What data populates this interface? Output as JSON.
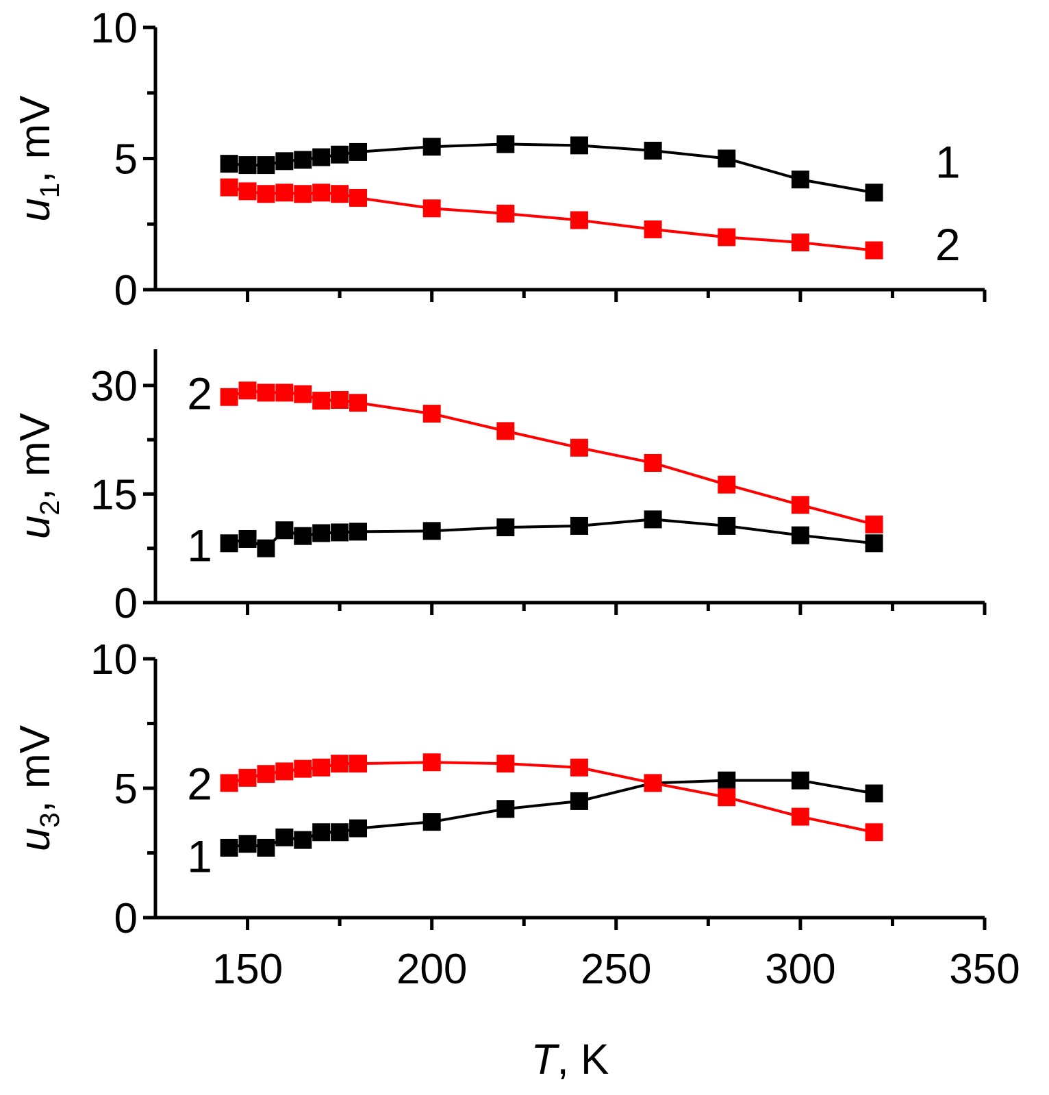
{
  "chart_data": [
    {
      "type": "line",
      "ylabel": {
        "var": "u",
        "sub": "1",
        "rest": ", mV"
      },
      "ylim": [
        0,
        10
      ],
      "yticks": [
        0,
        5,
        10
      ],
      "yminor": [
        2.5,
        7.5
      ],
      "xlim": [
        125,
        350
      ],
      "series": [
        {
          "name": "1",
          "color": "#000000",
          "label_x": 340,
          "label_y": 4.9,
          "x": [
            145,
            150,
            155,
            160,
            165,
            170,
            175,
            180,
            200,
            220,
            240,
            260,
            280,
            300,
            320
          ],
          "values": [
            4.8,
            4.75,
            4.75,
            4.9,
            4.95,
            5.05,
            5.15,
            5.25,
            5.45,
            5.55,
            5.5,
            5.3,
            5.0,
            4.2,
            3.7
          ]
        },
        {
          "name": "2",
          "color": "#ff0000",
          "label_x": 340,
          "label_y": 1.75,
          "x": [
            145,
            150,
            155,
            160,
            165,
            170,
            175,
            180,
            200,
            220,
            240,
            260,
            280,
            300,
            320
          ],
          "values": [
            3.9,
            3.75,
            3.65,
            3.7,
            3.65,
            3.7,
            3.65,
            3.5,
            3.1,
            2.9,
            2.65,
            2.3,
            2.0,
            1.8,
            1.5
          ]
        }
      ]
    },
    {
      "type": "line",
      "ylabel": {
        "var": "u",
        "sub": "2",
        "rest": ", mV"
      },
      "ylim": [
        0,
        35
      ],
      "yticks": [
        0,
        15,
        30
      ],
      "yminor": [
        7.5,
        22.5
      ],
      "xlim": [
        125,
        350
      ],
      "series": [
        {
          "name": "1",
          "color": "#000000",
          "label_x": 137,
          "label_y": 8.0,
          "x": [
            145,
            150,
            155,
            160,
            165,
            170,
            175,
            180,
            200,
            220,
            240,
            260,
            280,
            300,
            320
          ],
          "values": [
            8.2,
            8.8,
            7.5,
            10.0,
            9.2,
            9.6,
            9.7,
            9.8,
            9.9,
            10.4,
            10.6,
            11.5,
            10.6,
            9.3,
            8.2
          ]
        },
        {
          "name": "2",
          "color": "#ff0000",
          "label_x": 137,
          "label_y": 29.0,
          "x": [
            145,
            150,
            155,
            160,
            165,
            170,
            175,
            180,
            200,
            220,
            240,
            260,
            280,
            300,
            320
          ],
          "values": [
            28.4,
            29.3,
            29.0,
            29.0,
            28.8,
            27.9,
            28.0,
            27.6,
            26.1,
            23.7,
            21.4,
            19.3,
            16.3,
            13.5,
            10.8
          ]
        }
      ]
    },
    {
      "type": "line",
      "ylabel": {
        "var": "u",
        "sub": "3",
        "rest": ", mV"
      },
      "ylim": [
        0,
        10
      ],
      "yticks": [
        0,
        5,
        10
      ],
      "yminor": [
        2.5,
        7.5
      ],
      "xlim": [
        125,
        350
      ],
      "xticks": [
        150,
        200,
        250,
        300,
        350
      ],
      "xminor": [
        175,
        225,
        275,
        325
      ],
      "xlabel": {
        "var": "T",
        "rest": ", K"
      },
      "series": [
        {
          "name": "1",
          "color": "#000000",
          "label_x": 137,
          "label_y": 2.4,
          "x": [
            145,
            150,
            155,
            160,
            165,
            170,
            175,
            180,
            200,
            220,
            240,
            260,
            280,
            300,
            320
          ],
          "values": [
            2.7,
            2.85,
            2.7,
            3.1,
            3.0,
            3.3,
            3.3,
            3.45,
            3.7,
            4.2,
            4.5,
            5.2,
            5.3,
            5.3,
            4.8
          ]
        },
        {
          "name": "2",
          "color": "#ff0000",
          "label_x": 137,
          "label_y": 5.2,
          "x": [
            145,
            150,
            155,
            160,
            165,
            170,
            175,
            180,
            200,
            220,
            240,
            260,
            280,
            300,
            320
          ],
          "values": [
            5.2,
            5.4,
            5.55,
            5.65,
            5.75,
            5.8,
            5.95,
            5.95,
            6.0,
            5.95,
            5.8,
            5.2,
            4.65,
            3.9,
            3.3
          ]
        }
      ]
    }
  ]
}
